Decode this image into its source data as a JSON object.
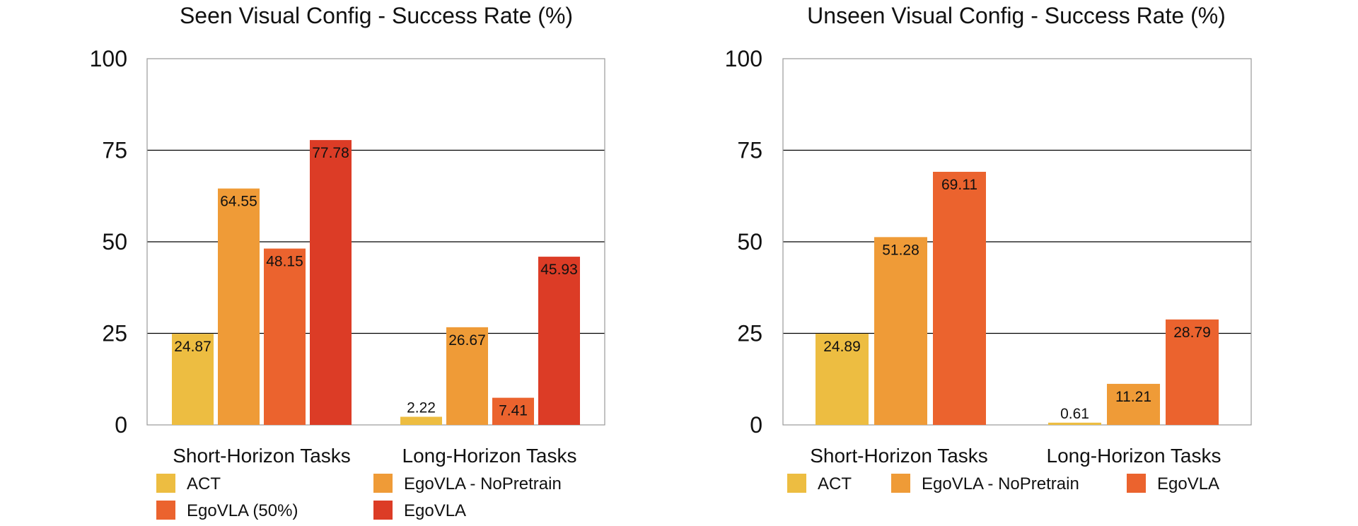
{
  "colors": {
    "act": "#EDBD41",
    "nopretrain": "#EF9B37",
    "egovla50": "#EB632E",
    "egovla": "#DC3C26",
    "egovla_unseen": "#EB632E",
    "grid": "#000000",
    "frame": "#9a9a9a"
  },
  "chart_data": [
    {
      "type": "bar",
      "title": "Seen Visual Config - Success Rate (%)",
      "categories": [
        "Short-Horizon Tasks",
        "Long-Horizon Tasks"
      ],
      "ylim": [
        0,
        100
      ],
      "yticks": [
        "0",
        "25",
        "50",
        "75",
        "100"
      ],
      "grid": true,
      "legend_position": "bottom",
      "series": [
        {
          "name": "ACT",
          "color_key": "act",
          "values": [
            24.87,
            2.22
          ],
          "labels": [
            "24.87",
            "2.22"
          ]
        },
        {
          "name": "EgoVLA - NoPretrain",
          "color_key": "nopretrain",
          "values": [
            64.55,
            26.67
          ],
          "labels": [
            "64.55",
            "26.67"
          ]
        },
        {
          "name": "EgoVLA   (50%)",
          "color_key": "egovla50",
          "values": [
            48.15,
            7.41
          ],
          "labels": [
            "48.15",
            "7.41"
          ]
        },
        {
          "name": "EgoVLA",
          "color_key": "egovla",
          "values": [
            77.78,
            45.93
          ],
          "labels": [
            "77.78",
            "45.93"
          ]
        }
      ]
    },
    {
      "type": "bar",
      "title": "Unseen Visual Config - Success Rate (%)",
      "categories": [
        "Short-Horizon Tasks",
        "Long-Horizon Tasks"
      ],
      "ylim": [
        0,
        100
      ],
      "yticks": [
        "0",
        "25",
        "50",
        "75",
        "100"
      ],
      "grid": true,
      "legend_position": "bottom",
      "series": [
        {
          "name": "ACT",
          "color_key": "act",
          "values": [
            24.89,
            0.61
          ],
          "labels": [
            "24.89",
            "0.61"
          ]
        },
        {
          "name": "EgoVLA - NoPretrain",
          "color_key": "nopretrain",
          "values": [
            51.28,
            11.21
          ],
          "labels": [
            "51.28",
            "11.21"
          ]
        },
        {
          "name": "EgoVLA",
          "color_key": "egovla_unseen",
          "values": [
            69.11,
            28.79
          ],
          "labels": [
            "69.11",
            "28.79"
          ]
        }
      ]
    }
  ]
}
